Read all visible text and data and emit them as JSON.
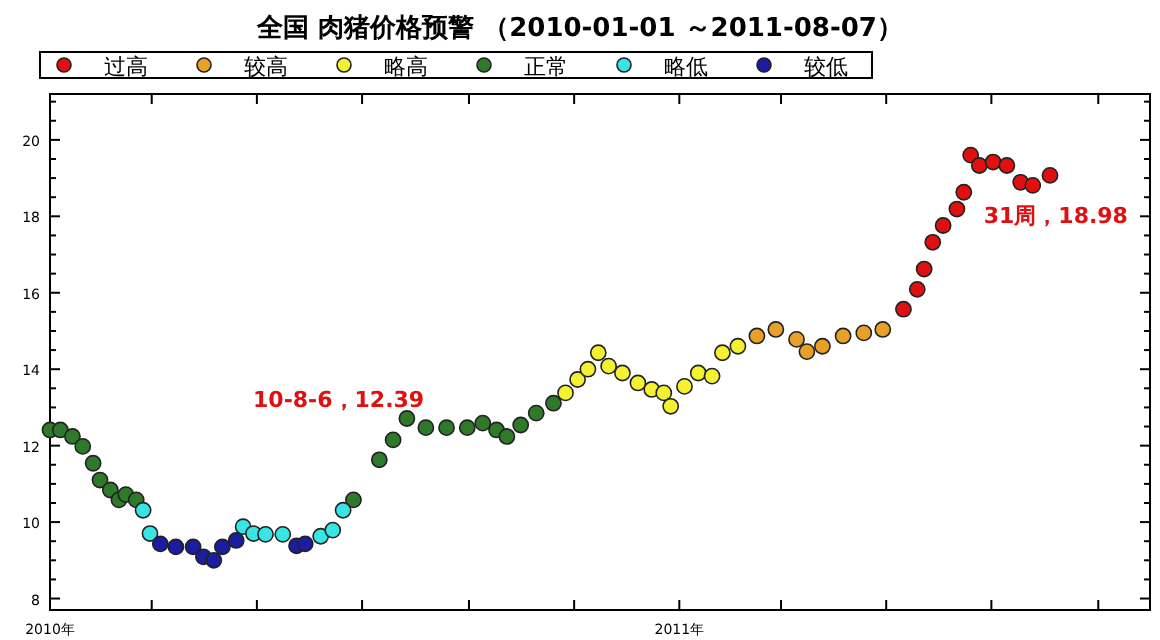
{
  "chart_data": {
    "type": "scatter",
    "title": "全国 肉猪价格预警 （2010-01-01 ～2011-08-07）",
    "legend": "top left",
    "marker": "circle",
    "grid": false,
    "xlim": [
      "2010-01-01",
      "2011-10-01"
    ],
    "xticks": [
      {
        "value": "2010-01-01",
        "label": "2010年"
      },
      {
        "value": "2010-03-01",
        "label": null
      },
      {
        "value": "2010-05-01",
        "label": null
      },
      {
        "value": "2010-07-01",
        "label": null
      },
      {
        "value": "2010-09-01",
        "label": null
      },
      {
        "value": "2010-11-01",
        "label": null
      },
      {
        "value": "2011-01-01",
        "label": "2011年"
      },
      {
        "value": "2011-03-01",
        "label": null
      },
      {
        "value": "2011-05-01",
        "label": null
      },
      {
        "value": "2011-07-01",
        "label": null
      },
      {
        "value": "2011-09-01",
        "label": null
      }
    ],
    "ylim": [
      7.7,
      21.2
    ],
    "yticks": [
      8,
      {
        "value": 8.5,
        "label": null
      },
      {
        "value": 9,
        "label": null
      },
      {
        "value": 9.5,
        "label": null
      },
      10,
      {
        "value": 10.5,
        "label": null
      },
      {
        "value": 11,
        "label": null
      },
      {
        "value": 11.5,
        "label": null
      },
      12,
      {
        "value": 12.5,
        "label": null
      },
      {
        "value": 13,
        "label": null
      },
      {
        "value": 13.5,
        "label": null
      },
      14,
      {
        "value": 14.5,
        "label": null
      },
      {
        "value": 15,
        "label": null
      },
      {
        "value": 15.5,
        "label": null
      },
      16,
      {
        "value": 16.5,
        "label": null
      },
      {
        "value": 17,
        "label": null
      },
      {
        "value": 17.5,
        "label": null
      },
      18,
      {
        "value": 18.5,
        "label": null
      },
      {
        "value": 19,
        "label": null
      },
      {
        "value": 19.5,
        "label": null
      },
      20,
      {
        "value": 20.5,
        "label": null
      },
      {
        "value": 21,
        "label": null
      }
    ],
    "annotations": [
      {
        "text": "10-8-6，12.39",
        "x": "2010-08-06",
        "y": 12.39
      },
      {
        "text": "31周，18.98",
        "x": "2011-08-05",
        "y": 18.98
      }
    ],
    "series": [
      {
        "name": "过高",
        "color": "#e01010",
        "x": [
          "2011-05-11",
          "2011-05-19",
          "2011-05-23",
          "2011-05-28",
          "2011-06-03",
          "2011-06-11",
          "2011-06-15",
          "2011-06-19",
          "2011-06-24",
          "2011-07-02",
          "2011-07-10",
          "2011-07-18",
          "2011-07-25",
          "2011-08-04"
        ],
        "values": [
          15.57,
          16.09,
          16.62,
          17.32,
          17.76,
          18.19,
          18.63,
          19.6,
          19.33,
          19.42,
          19.33,
          18.89,
          18.81,
          19.07
        ]
      },
      {
        "name": "较高",
        "color": "#e8a028",
        "x": [
          "2011-02-15",
          "2011-02-26",
          "2011-03-10",
          "2011-03-16",
          "2011-03-25",
          "2011-04-06",
          "2011-04-18",
          "2011-04-29"
        ],
        "values": [
          14.87,
          15.04,
          14.78,
          14.46,
          14.6,
          14.87,
          14.95,
          15.04
        ]
      },
      {
        "name": "略高",
        "color": "#f4f032",
        "x": [
          "2010-10-27",
          "2010-11-03",
          "2010-11-09",
          "2010-11-15",
          "2010-11-21",
          "2010-11-29",
          "2010-12-08",
          "2010-12-16",
          "2010-12-23",
          "2010-12-27",
          "2011-01-04",
          "2011-01-12",
          "2011-01-20",
          "2011-01-26",
          "2011-02-04"
        ],
        "values": [
          13.38,
          13.73,
          14.0,
          14.43,
          14.08,
          13.9,
          13.64,
          13.47,
          13.38,
          13.03,
          13.55,
          13.9,
          13.82,
          14.43,
          14.6
        ]
      },
      {
        "name": "正常",
        "color": "#2e7a2a",
        "x": [
          "2010-01-01",
          "2010-01-07",
          "2010-01-14",
          "2010-01-20",
          "2010-01-26",
          "2010-01-30",
          "2010-02-05",
          "2010-02-10",
          "2010-02-14",
          "2010-02-20",
          "2010-06-26",
          "2010-07-11",
          "2010-07-19",
          "2010-07-27",
          "2010-08-07",
          "2010-08-19",
          "2010-08-31",
          "2010-09-09",
          "2010-09-17",
          "2010-09-23",
          "2010-10-01",
          "2010-10-10",
          "2010-10-20"
        ],
        "values": [
          12.41,
          12.41,
          12.24,
          11.98,
          11.54,
          11.1,
          10.84,
          10.58,
          10.72,
          10.58,
          10.58,
          11.63,
          12.15,
          12.71,
          12.47,
          12.47,
          12.47,
          12.59,
          12.41,
          12.24,
          12.54,
          12.85,
          13.11
        ]
      },
      {
        "name": "略低",
        "color": "#38e4e4",
        "x": [
          "2010-02-24",
          "2010-02-28",
          "2010-04-23",
          "2010-04-29",
          "2010-05-06",
          "2010-05-16",
          "2010-06-07",
          "2010-06-14",
          "2010-06-20"
        ],
        "values": [
          10.31,
          9.7,
          9.88,
          9.7,
          9.68,
          9.68,
          9.63,
          9.79,
          10.31
        ]
      },
      {
        "name": "较低",
        "color": "#1c1ca0",
        "x": [
          "2010-03-06",
          "2010-03-15",
          "2010-03-25",
          "2010-03-31",
          "2010-04-06",
          "2010-04-11",
          "2010-04-19",
          "2010-05-24",
          "2010-05-29"
        ],
        "values": [
          9.43,
          9.35,
          9.35,
          9.09,
          9.0,
          9.35,
          9.52,
          9.38,
          9.43
        ]
      }
    ]
  }
}
